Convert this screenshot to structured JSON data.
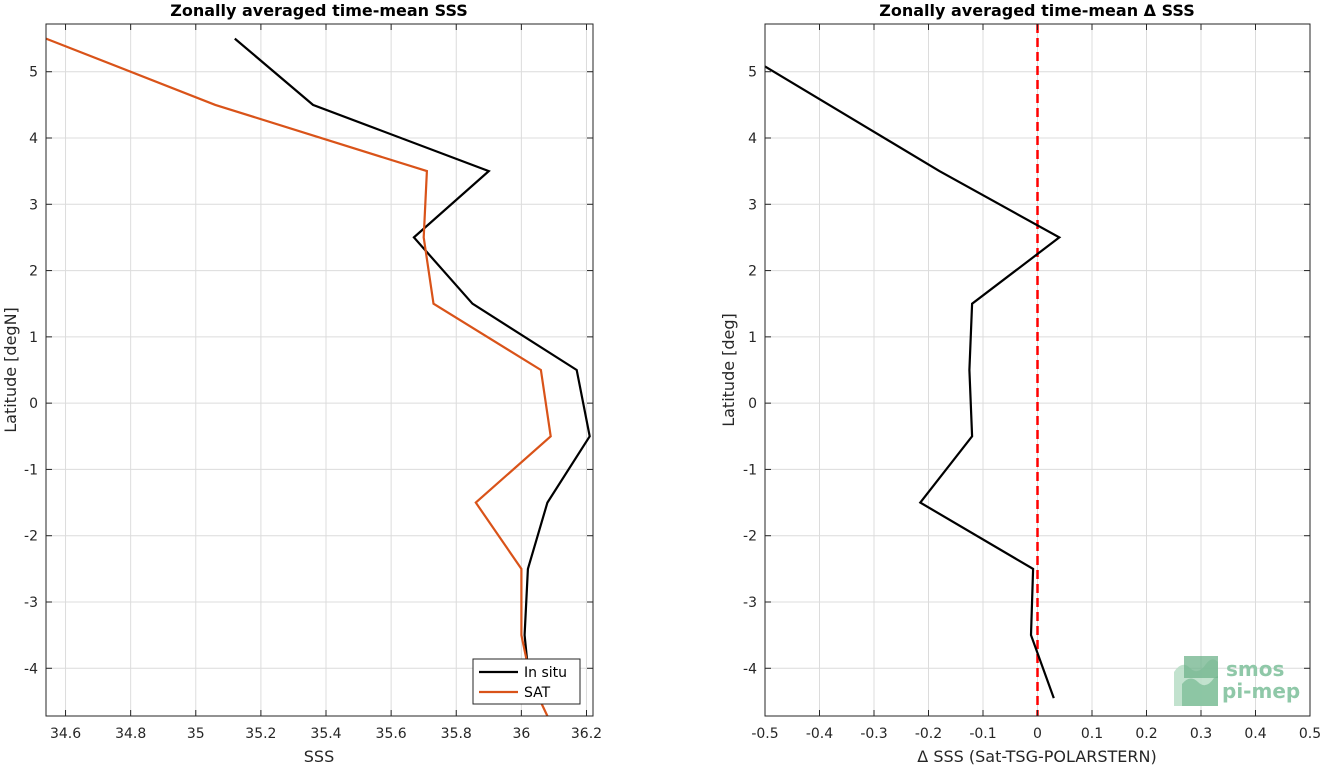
{
  "chart_data": [
    {
      "type": "line",
      "title": "Zonally averaged time-mean SSS",
      "xlabel": "SSS",
      "ylabel": "Latitude [degN]",
      "xlim": [
        34.54,
        36.22
      ],
      "ylim": [
        -4.72,
        5.72
      ],
      "xticks": [
        34.6,
        34.8,
        35,
        35.2,
        35.4,
        35.6,
        35.8,
        36,
        36.2
      ],
      "xtick_labels": [
        "34.6",
        "34.8",
        "35",
        "35.2",
        "35.4",
        "35.6",
        "35.8",
        "36",
        "36.2"
      ],
      "yticks": [
        -4,
        -3,
        -2,
        -1,
        0,
        1,
        2,
        3,
        4,
        5
      ],
      "ytick_labels": [
        "-4",
        "-3",
        "-2",
        "-1",
        "0",
        "1",
        "2",
        "3",
        "4",
        "5"
      ],
      "grid": true,
      "legend_position": "bottom-right",
      "series": [
        {
          "name": "In situ",
          "color": "#000000",
          "points": [
            [
              35.12,
              5.5
            ],
            [
              35.36,
              4.5
            ],
            [
              35.9,
              3.5
            ],
            [
              35.67,
              2.5
            ],
            [
              35.85,
              1.5
            ],
            [
              36.17,
              0.5
            ],
            [
              36.21,
              -0.5
            ],
            [
              36.08,
              -1.5
            ],
            [
              36.02,
              -2.5
            ],
            [
              36.01,
              -3.5
            ],
            [
              36.02,
              -4.0
            ]
          ]
        },
        {
          "name": "SAT",
          "color": "#d95319",
          "points": [
            [
              34.54,
              5.5
            ],
            [
              35.06,
              4.5
            ],
            [
              35.71,
              3.5
            ],
            [
              35.7,
              2.5
            ],
            [
              35.73,
              1.5
            ],
            [
              36.06,
              0.5
            ],
            [
              36.09,
              -0.5
            ],
            [
              35.86,
              -1.5
            ],
            [
              36.0,
              -2.5
            ],
            [
              36.0,
              -3.5
            ],
            [
              36.03,
              -4.2
            ],
            [
              36.08,
              -4.72
            ]
          ]
        }
      ]
    },
    {
      "type": "line",
      "title": "Zonally averaged time-mean Δ SSS",
      "xlabel": "Δ SSS (Sat-TSG-POLARSTERN)",
      "ylabel": "Latitude [deg]",
      "xlim": [
        -0.5,
        0.5
      ],
      "ylim": [
        -4.72,
        5.72
      ],
      "xticks": [
        -0.5,
        -0.4,
        -0.3,
        -0.2,
        -0.1,
        0,
        0.1,
        0.2,
        0.3,
        0.4,
        0.5
      ],
      "xtick_labels": [
        "-0.5",
        "-0.4",
        "-0.3",
        "-0.2",
        "-0.1",
        "0",
        "0.1",
        "0.2",
        "0.3",
        "0.4",
        "0.5"
      ],
      "yticks": [
        -4,
        -3,
        -2,
        -1,
        0,
        1,
        2,
        3,
        4,
        5
      ],
      "ytick_labels": [
        "-4",
        "-3",
        "-2",
        "-1",
        "0",
        "1",
        "2",
        "3",
        "4",
        "5"
      ],
      "grid": true,
      "reference_line": {
        "x": 0,
        "color": "#ff0000",
        "style": "dashed"
      },
      "series": [
        {
          "color": "#000000",
          "points": [
            [
              -0.5,
              5.08
            ],
            [
              -0.18,
              3.5
            ],
            [
              0.04,
              2.5
            ],
            [
              -0.12,
              1.5
            ],
            [
              -0.125,
              0.5
            ],
            [
              -0.12,
              -0.5
            ],
            [
              -0.215,
              -1.5
            ],
            [
              -0.008,
              -2.5
            ],
            [
              -0.012,
              -3.5
            ],
            [
              0.03,
              -4.45
            ]
          ]
        }
      ]
    }
  ],
  "logo": {
    "line1": "smos",
    "line2": "pi-mep",
    "color": "#8fc8a8"
  }
}
